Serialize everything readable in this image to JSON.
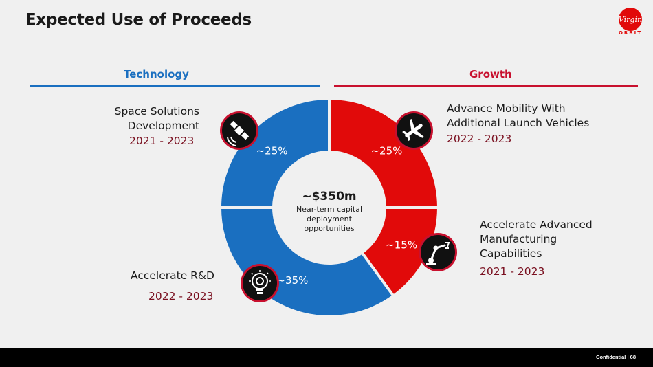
{
  "slide": {
    "title": "Expected Use of Proceeds",
    "logo_text": "ORBIT",
    "logo_script": "Virgin"
  },
  "sections": {
    "technology": "Technology",
    "growth": "Growth"
  },
  "center": {
    "amount": "~$350m",
    "line1": "Near-term capital",
    "line2": "deployment",
    "line3": "opportunities"
  },
  "chart_data": {
    "type": "pie",
    "categories": [
      "Advance Mobility With Additional Launch Vehicles",
      "Accelerate Advanced Manufacturing Capabilities",
      "Accelerate R&D",
      "Space Solutions Development"
    ],
    "values": [
      25,
      15,
      35,
      25
    ],
    "value_labels": [
      "~25%",
      "~15%",
      "~35%",
      "~25%"
    ],
    "colors": [
      "#e10a0a",
      "#e10a0a",
      "#1a6fc0",
      "#1a6fc0"
    ],
    "donut": true
  },
  "items": {
    "space": {
      "line1": "Space Solutions",
      "line2": "Development",
      "period": "2021 - 2023",
      "icon": "satellite-icon"
    },
    "mobility": {
      "line1": "Advance Mobility With",
      "line2": "Additional Launch Vehicles",
      "period": "2022 - 2023",
      "icon": "airplane-icon"
    },
    "manufacturing": {
      "line1": "Accelerate Advanced",
      "line2": "Manufacturing",
      "line3": "Capabilities",
      "period": "2021 - 2023",
      "icon": "robot-arm-icon"
    },
    "rnd": {
      "line1": "Accelerate R&D",
      "period": "2022 - 2023",
      "icon": "lightbulb-gear-icon"
    }
  },
  "footer": {
    "text": "Confidential  |  68"
  }
}
